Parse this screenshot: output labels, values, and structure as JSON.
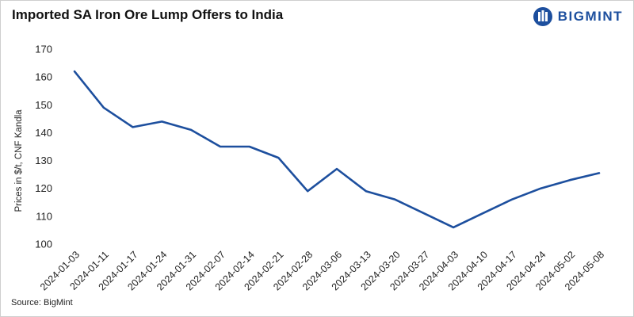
{
  "title": "Imported SA Iron Ore Lump Offers to India",
  "brand": {
    "name": "BIGMINT",
    "color": "#1d4f9e",
    "icon": "bigmint-logo-icon"
  },
  "source": "Source: BigMint",
  "chart_data": {
    "type": "line",
    "title": "Imported SA Iron Ore Lump Offers to India",
    "xlabel": "",
    "ylabel": "Prices in $/t, CNF Kandla",
    "ylim": [
      100,
      170
    ],
    "yticks": [
      100,
      110,
      120,
      130,
      140,
      150,
      160,
      170
    ],
    "grid": false,
    "line_color": "#1d4f9e",
    "categories": [
      "2024-01-03",
      "2024-01-11",
      "2024-01-17",
      "2024-01-24",
      "2024-01-31",
      "2024-02-07",
      "2024-02-14",
      "2024-02-21",
      "2024-02-28",
      "2024-03-06",
      "2024-03-13",
      "2024-03-20",
      "2024-03-27",
      "2024-04-03",
      "2024-04-10",
      "2024-04-17",
      "2024-04-24",
      "2024-05-02",
      "2024-05-08"
    ],
    "series": [
      {
        "name": "SA Iron Ore Lump",
        "values": [
          162,
          149,
          142,
          144,
          141,
          135,
          135,
          131,
          119,
          127,
          119,
          116,
          111,
          106,
          111,
          116,
          120,
          123,
          125.5
        ]
      }
    ]
  }
}
